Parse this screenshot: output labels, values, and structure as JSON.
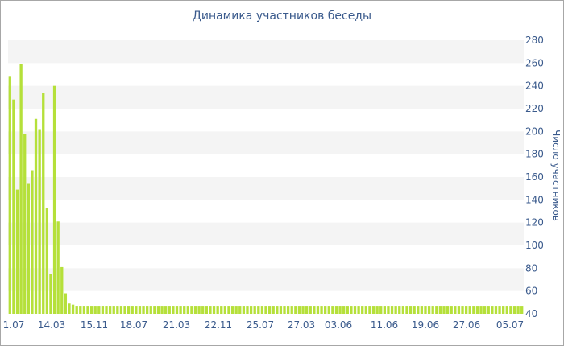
{
  "chart_data": {
    "type": "bar",
    "title": "Динамика участников беседы",
    "xlabel": "",
    "ylabel": "Число участников",
    "ylim": [
      40,
      280
    ],
    "y_ticks": [
      40,
      60,
      80,
      100,
      120,
      140,
      160,
      180,
      200,
      220,
      240,
      260,
      280
    ],
    "y_axis_side": "right",
    "grid": "horizontal bands",
    "x_tick_labels": [
      "1.07",
      "14.03",
      "15.11",
      "18.07",
      "21.03",
      "22.11",
      "25.07",
      "27.03",
      "03.06",
      "11.06",
      "19.06",
      "27.06",
      "05.07"
    ],
    "values": [
      248,
      228,
      149,
      259,
      198,
      154,
      166,
      211,
      202,
      234,
      133,
      75,
      240,
      121,
      81,
      58,
      49,
      48,
      47,
      47,
      47,
      47,
      47,
      47,
      47,
      47,
      47,
      47,
      47,
      47,
      47,
      47,
      47,
      47,
      47,
      47,
      47,
      47,
      47,
      47,
      47,
      47,
      47,
      47,
      47,
      47,
      47,
      47,
      47,
      47,
      47,
      47,
      47,
      47,
      47,
      47,
      47,
      47,
      47,
      47,
      47,
      47,
      47,
      47,
      47,
      47,
      47,
      47,
      47,
      47,
      47,
      47,
      47,
      47,
      47,
      47,
      47,
      47,
      47,
      47,
      47,
      47,
      47,
      47,
      47,
      47,
      47,
      47,
      47,
      47,
      47,
      47,
      47,
      47,
      47,
      47,
      47,
      47,
      47,
      47,
      47,
      47,
      47,
      47,
      47,
      47,
      47,
      47,
      47,
      47,
      47,
      47,
      47,
      47,
      47,
      47,
      47,
      47,
      47,
      47,
      47,
      47,
      47,
      47,
      47,
      47,
      47,
      47,
      47,
      47,
      47,
      47,
      47,
      47,
      47,
      47,
      47,
      47,
      47
    ],
    "bar_color": "#b5e03a",
    "band_color": "#f4f4f4",
    "text_color": "#3a5a8c"
  }
}
